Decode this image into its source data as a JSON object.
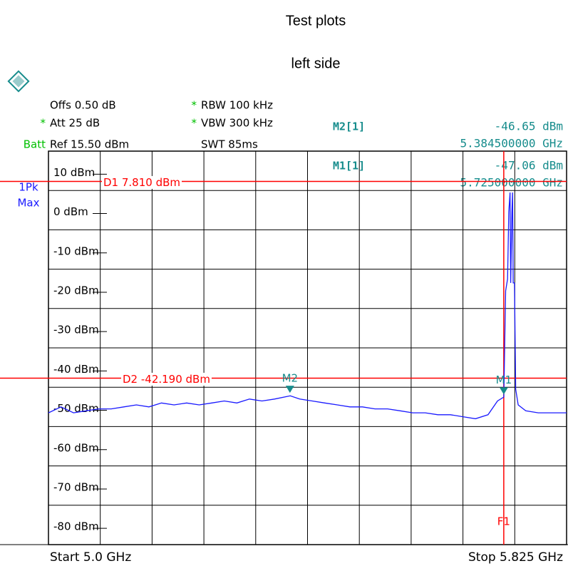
{
  "header": {
    "title": "Test plots",
    "subtitle": "left side"
  },
  "settings": [
    {
      "mark": null,
      "text": "Offs 0.50 dB"
    },
    {
      "mark": "*",
      "text": "Att  25 dB"
    },
    {
      "mark": "Batt",
      "text": "Ref  15.50 dBm"
    },
    {
      "mark": "*",
      "text": "RBW 100 kHz"
    },
    {
      "mark": "*",
      "text": "VBW 300 kHz"
    },
    {
      "mark": null,
      "text": "SWT 85ms"
    }
  ],
  "trace_info": [
    "1Pk",
    "Max"
  ],
  "readouts": [
    {
      "name": "M2[1]",
      "level": "-46.65 dBm",
      "freq": "5.384500000 GHz"
    },
    {
      "name": "M1[1]",
      "level": "-47.06 dBm",
      "freq": "5.725000000 GHz"
    }
  ],
  "footer": {
    "start": "Start 5.0 GHz",
    "stop": "Stop 5.825 GHz"
  },
  "chart_data": {
    "type": "line",
    "xlim": [
      5.0,
      5.825
    ],
    "ylim": [
      -84.5,
      15.5
    ],
    "yticks": [
      {
        "value": 10,
        "label": "10 dBm"
      },
      {
        "value": 0,
        "label": "0 dBm"
      },
      {
        "value": -10,
        "label": "-10 dBm"
      },
      {
        "value": -20,
        "label": "-20 dBm"
      },
      {
        "value": -30,
        "label": "-30 dBm"
      },
      {
        "value": -40,
        "label": "-40 dBm"
      },
      {
        "value": -50,
        "label": "-50 dBm"
      },
      {
        "value": -60,
        "label": "-60 dBm"
      },
      {
        "value": -70,
        "label": "-70 dBm"
      },
      {
        "value": -80,
        "label": "-80 dBm"
      }
    ],
    "grid": true,
    "x": [
      5.0,
      5.02,
      5.04,
      5.06,
      5.08,
      5.1,
      5.12,
      5.14,
      5.16,
      5.18,
      5.2,
      5.22,
      5.24,
      5.26,
      5.28,
      5.3,
      5.32,
      5.34,
      5.36,
      5.385,
      5.4,
      5.42,
      5.44,
      5.46,
      5.48,
      5.5,
      5.52,
      5.54,
      5.56,
      5.58,
      5.6,
      5.62,
      5.64,
      5.66,
      5.68,
      5.7,
      5.715,
      5.725,
      5.728,
      5.731,
      5.733,
      5.735,
      5.736,
      5.738,
      5.739,
      5.74,
      5.742,
      5.744,
      5.748,
      5.76,
      5.78,
      5.8,
      5.825
    ],
    "series": [
      {
        "name": null,
        "color": "#1a1aff",
        "values": [
          -51,
          -49.5,
          -51,
          -50.5,
          -50,
          -50,
          -49.5,
          -49,
          -49.5,
          -48.5,
          -49,
          -48.5,
          -49,
          -48.5,
          -48,
          -48.5,
          -47.5,
          -48,
          -47.5,
          -46.7,
          -47.5,
          -48,
          -48.5,
          -49,
          -49.5,
          -49.5,
          -50,
          -50,
          -50.5,
          -51,
          -51,
          -51.5,
          -51.5,
          -52,
          -52.5,
          -51.5,
          -48,
          -47,
          -20,
          -17,
          0,
          5,
          -18,
          0,
          5,
          -18,
          -18,
          -45,
          -49,
          -50.5,
          -51,
          -51,
          -51
        ]
      }
    ],
    "hlines": [
      {
        "label": "D1  7.810 dBm",
        "value": 7.81,
        "color": "#ff0000"
      },
      {
        "label": "D2  -42.190 dBm",
        "value": -42.19,
        "color": "#ff0000"
      }
    ],
    "vlines": [
      {
        "label": "F1",
        "value": 5.725,
        "color": "#ff0000"
      }
    ],
    "markers": [
      {
        "label": "M2",
        "x": 5.3845,
        "value": -46.65,
        "color": "#168c8c"
      },
      {
        "label": "M1",
        "x": 5.725,
        "value": -47.06,
        "color": "#168c8c"
      }
    ]
  }
}
